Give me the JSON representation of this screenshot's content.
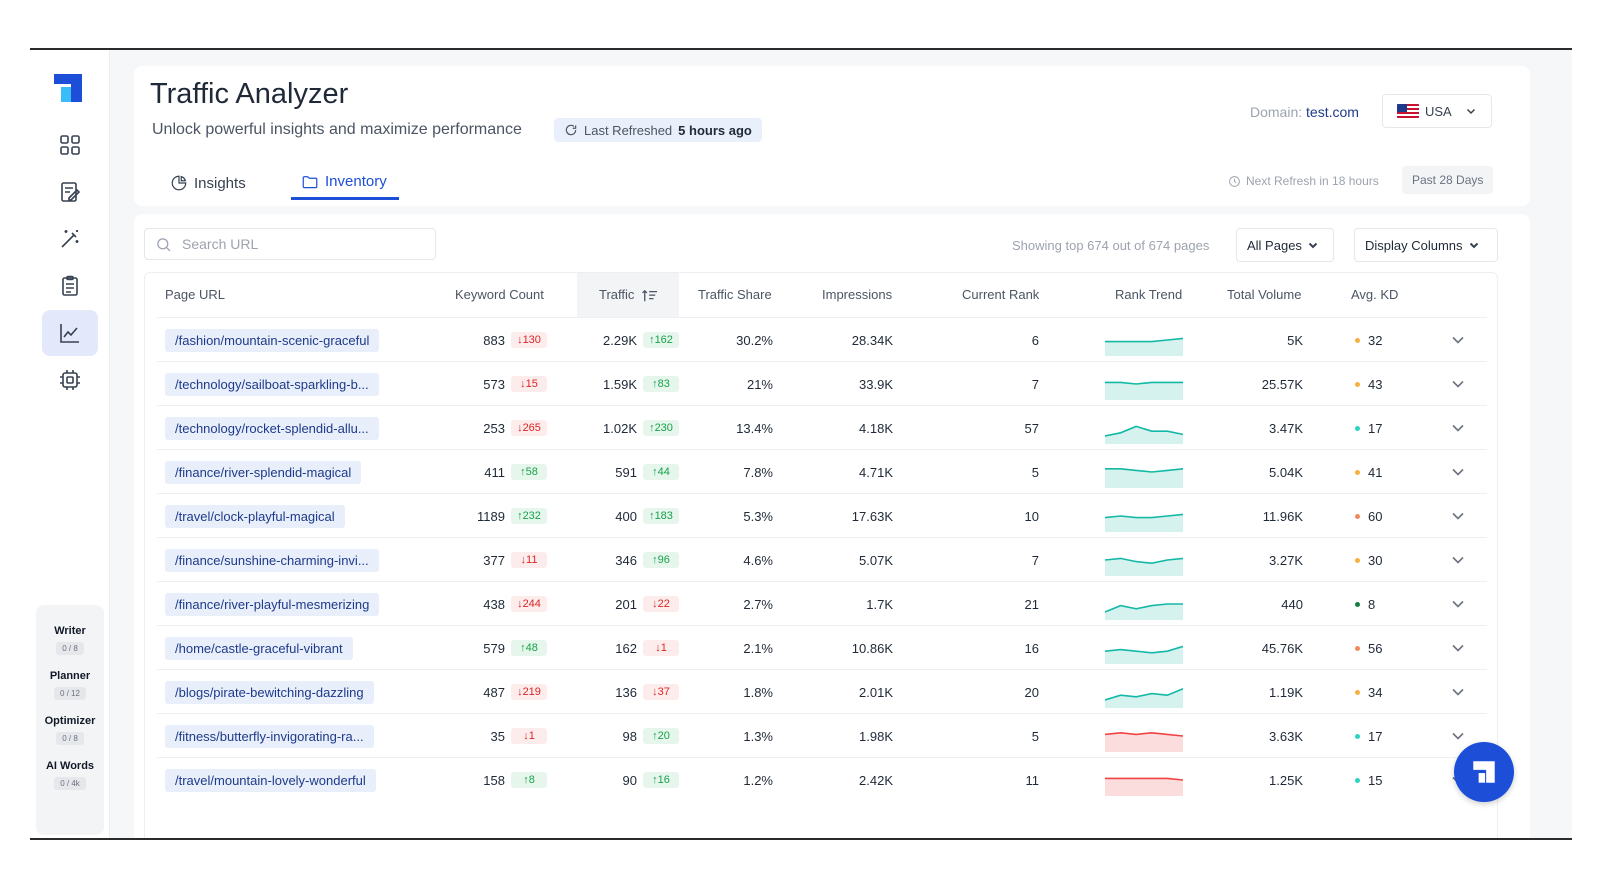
{
  "header": {
    "title": "Traffic Analyzer",
    "subtitle": "Unlock powerful insights and maximize performance",
    "last_refreshed_label": "Last Refreshed",
    "last_refreshed_value": "5 hours ago",
    "domain_label": "Domain:",
    "domain_value": "test.com",
    "country": "USA",
    "next_refresh": "Next Refresh in 18 hours",
    "period": "Past 28 Days"
  },
  "tabs": [
    {
      "label": "Insights",
      "icon": "pie-chart-icon"
    },
    {
      "label": "Inventory",
      "icon": "folder-icon"
    }
  ],
  "sidebar": {
    "nav": [
      "grid-icon",
      "edit-document-icon",
      "magic-wand-icon",
      "clipboard-icon",
      "line-chart-icon",
      "chip-icon"
    ],
    "active_index": 4,
    "credits": [
      {
        "label": "Writer",
        "value": "0 / 8"
      },
      {
        "label": "Planner",
        "value": "0 / 12"
      },
      {
        "label": "Optimizer",
        "value": "0 / 8"
      },
      {
        "label": "AI Words",
        "value": "0 / 4k"
      }
    ]
  },
  "toolbar": {
    "search_placeholder": "Search URL",
    "showing": "Showing top 674 out of 674 pages",
    "filter": "All Pages",
    "columns": "Display Columns"
  },
  "columns": [
    "Page URL",
    "Keyword Count",
    "Traffic",
    "Traffic Share",
    "Impressions",
    "Current Rank",
    "Rank Trend",
    "Total Volume",
    "Avg. KD"
  ],
  "colors": {
    "accent": "#1d4ed8",
    "up": "#16a34a",
    "down": "#dc2626",
    "trend_green": "#14b8a6",
    "trend_red": "#ef4444"
  },
  "rows": [
    {
      "url": "/fashion/mountain-scenic-graceful",
      "kw": "883",
      "kw_delta": "130",
      "kw_dir": "down",
      "traffic": "2.29K",
      "tr_delta": "162",
      "tr_dir": "up",
      "share": "30.2%",
      "impr": "28.34K",
      "rank": "6",
      "trend": "green",
      "trend_pts": [
        0.55,
        0.55,
        0.55,
        0.55,
        0.5,
        0.45
      ],
      "vol": "5K",
      "kd": "32",
      "kd_color": "#f5b041"
    },
    {
      "url": "/technology/sailboat-sparkling-b...",
      "kw": "573",
      "kw_delta": "15",
      "kw_dir": "down",
      "traffic": "1.59K",
      "tr_delta": "83",
      "tr_dir": "up",
      "share": "21%",
      "impr": "33.9K",
      "rank": "7",
      "trend": "green",
      "trend_pts": [
        0.45,
        0.45,
        0.5,
        0.45,
        0.45,
        0.45
      ],
      "vol": "25.57K",
      "kd": "43",
      "kd_color": "#f5b041"
    },
    {
      "url": "/technology/rocket-splendid-allu...",
      "kw": "253",
      "kw_delta": "265",
      "kw_dir": "down",
      "traffic": "1.02K",
      "tr_delta": "230",
      "tr_dir": "up",
      "share": "13.4%",
      "impr": "4.18K",
      "rank": "57",
      "trend": "green",
      "trend_pts": [
        0.75,
        0.65,
        0.45,
        0.6,
        0.6,
        0.7
      ],
      "vol": "3.47K",
      "kd": "17",
      "kd_color": "#2dd4bf"
    },
    {
      "url": "/finance/river-splendid-magical",
      "kw": "411",
      "kw_delta": "58",
      "kw_dir": "up",
      "traffic": "591",
      "tr_delta": "44",
      "tr_dir": "up",
      "share": "7.8%",
      "impr": "4.71K",
      "rank": "5",
      "trend": "green",
      "trend_pts": [
        0.4,
        0.4,
        0.45,
        0.5,
        0.45,
        0.4
      ],
      "vol": "5.04K",
      "kd": "41",
      "kd_color": "#f5b041"
    },
    {
      "url": "/travel/clock-playful-magical",
      "kw": "1189",
      "kw_delta": "232",
      "kw_dir": "up",
      "traffic": "400",
      "tr_delta": "183",
      "tr_dir": "up",
      "share": "5.3%",
      "impr": "17.63K",
      "rank": "10",
      "trend": "green",
      "trend_pts": [
        0.55,
        0.5,
        0.55,
        0.55,
        0.5,
        0.45
      ],
      "vol": "11.96K",
      "kd": "60",
      "kd_color": "#f08a5d"
    },
    {
      "url": "/finance/sunshine-charming-invi...",
      "kw": "377",
      "kw_delta": "11",
      "kw_dir": "down",
      "traffic": "346",
      "tr_delta": "96",
      "tr_dir": "up",
      "share": "4.6%",
      "impr": "5.07K",
      "rank": "7",
      "trend": "green",
      "trend_pts": [
        0.5,
        0.45,
        0.55,
        0.6,
        0.5,
        0.45
      ],
      "vol": "3.27K",
      "kd": "30",
      "kd_color": "#f5b041"
    },
    {
      "url": "/finance/river-playful-mesmerizing",
      "kw": "438",
      "kw_delta": "244",
      "kw_dir": "down",
      "traffic": "201",
      "tr_delta": "22",
      "tr_dir": "down",
      "share": "2.7%",
      "impr": "1.7K",
      "rank": "21",
      "trend": "green",
      "trend_pts": [
        0.75,
        0.55,
        0.65,
        0.55,
        0.5,
        0.5
      ],
      "vol": "440",
      "kd": "8",
      "kd_color": "#15803d"
    },
    {
      "url": "/home/castle-graceful-vibrant",
      "kw": "579",
      "kw_delta": "48",
      "kw_dir": "up",
      "traffic": "162",
      "tr_delta": "1",
      "tr_dir": "down",
      "share": "2.1%",
      "impr": "10.86K",
      "rank": "16",
      "trend": "green",
      "trend_pts": [
        0.6,
        0.55,
        0.6,
        0.65,
        0.6,
        0.45
      ],
      "vol": "45.76K",
      "kd": "56",
      "kd_color": "#f08a5d"
    },
    {
      "url": "/blogs/pirate-bewitching-dazzling",
      "kw": "487",
      "kw_delta": "219",
      "kw_dir": "down",
      "traffic": "136",
      "tr_delta": "37",
      "tr_dir": "down",
      "share": "1.8%",
      "impr": "2.01K",
      "rank": "20",
      "trend": "green",
      "trend_pts": [
        0.75,
        0.6,
        0.65,
        0.55,
        0.6,
        0.4
      ],
      "vol": "1.19K",
      "kd": "34",
      "kd_color": "#f5b041"
    },
    {
      "url": "/fitness/butterfly-invigorating-ra...",
      "kw": "35",
      "kw_delta": "1",
      "kw_dir": "down",
      "traffic": "98",
      "tr_delta": "20",
      "tr_dir": "up",
      "share": "1.3%",
      "impr": "1.98K",
      "rank": "5",
      "trend": "red",
      "trend_pts": [
        0.45,
        0.4,
        0.45,
        0.4,
        0.45,
        0.5
      ],
      "vol": "3.63K",
      "kd": "17",
      "kd_color": "#2dd4bf"
    },
    {
      "url": "/travel/mountain-lovely-wonderful",
      "kw": "158",
      "kw_delta": "8",
      "kw_dir": "up",
      "traffic": "90",
      "tr_delta": "16",
      "tr_dir": "up",
      "share": "1.2%",
      "impr": "2.42K",
      "rank": "11",
      "trend": "red",
      "trend_pts": [
        0.45,
        0.45,
        0.45,
        0.45,
        0.45,
        0.5
      ],
      "vol": "1.25K",
      "kd": "15",
      "kd_color": "#2dd4bf"
    }
  ]
}
